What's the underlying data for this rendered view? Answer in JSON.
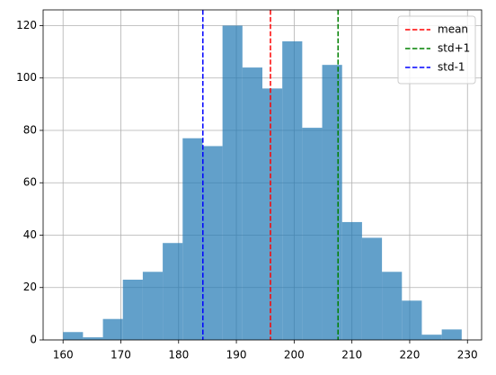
{
  "chart_data": {
    "type": "histogram",
    "bins": [
      160,
      163.45,
      166.9,
      170.35,
      173.8,
      177.25,
      180.7,
      184.15,
      187.6,
      191.05,
      194.5,
      197.95,
      201.4,
      204.85,
      208.3,
      211.75,
      215.2,
      218.65,
      222.1,
      225.55,
      229
    ],
    "values": [
      3,
      1,
      8,
      23,
      26,
      37,
      77,
      74,
      120,
      104,
      96,
      114,
      81,
      105,
      45,
      39,
      26,
      15,
      2,
      4
    ],
    "color": "#1f77b4",
    "lines": [
      {
        "name": "mean",
        "color": "#ff0000",
        "x": 195.9
      },
      {
        "name": "std+1",
        "color": "#008000",
        "x": 207.6
      },
      {
        "name": "std-1",
        "color": "#0000ff",
        "x": 184.2
      }
    ],
    "xlim": [
      156.55,
      232.45
    ],
    "xticks": [
      160,
      170,
      180,
      190,
      200,
      210,
      220,
      230
    ],
    "ylim": [
      0,
      126
    ],
    "yticks": [
      0,
      20,
      40,
      60,
      80,
      100,
      120
    ],
    "grid": true,
    "legend": "upper right"
  }
}
